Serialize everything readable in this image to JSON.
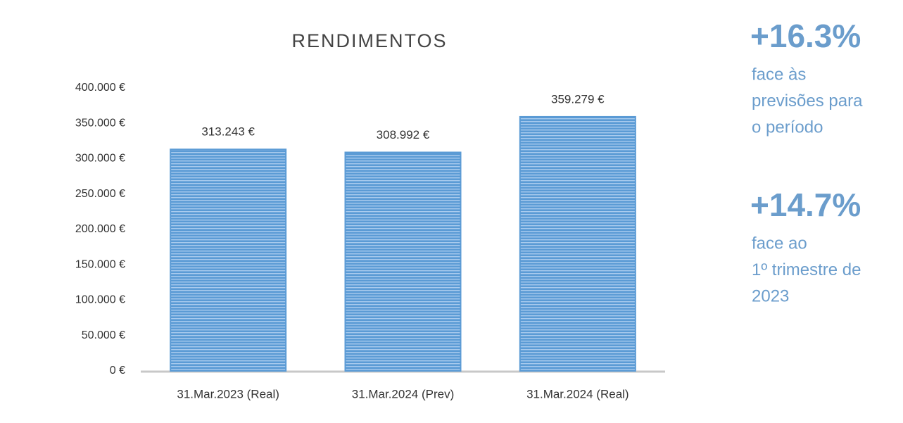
{
  "chart_data": {
    "type": "bar",
    "title": "RENDIMENTOS",
    "categories": [
      "31.Mar.2023 (Real)",
      "31.Mar.2024 (Prev)",
      "31.Mar.2024 (Real)"
    ],
    "values": [
      313243,
      308992,
      359279
    ],
    "value_labels": [
      "313.243 €",
      "308.992 €",
      "359.279 €"
    ],
    "color": "#5b9bd5",
    "ylim": [
      0,
      400000
    ],
    "yticks": [
      {
        "value": 0,
        "label": "0 €"
      },
      {
        "value": 50000,
        "label": "50.000 €"
      },
      {
        "value": 100000,
        "label": "100.000 €"
      },
      {
        "value": 150000,
        "label": "150.000 €"
      },
      {
        "value": 200000,
        "label": "200.000 €"
      },
      {
        "value": 250000,
        "label": "250.000 €"
      },
      {
        "value": 300000,
        "label": "300.000 €"
      },
      {
        "value": 350000,
        "label": "350.000 €"
      },
      {
        "value": 400000,
        "label": "400.000 €"
      }
    ],
    "grid": false,
    "annotations": [
      {
        "headline": "+16.3%",
        "lines": [
          "face às",
          "previsões para",
          "o período"
        ]
      },
      {
        "headline": "+14.7%",
        "lines": [
          "face ao",
          "1º trimestre de",
          "2023"
        ]
      }
    ]
  }
}
